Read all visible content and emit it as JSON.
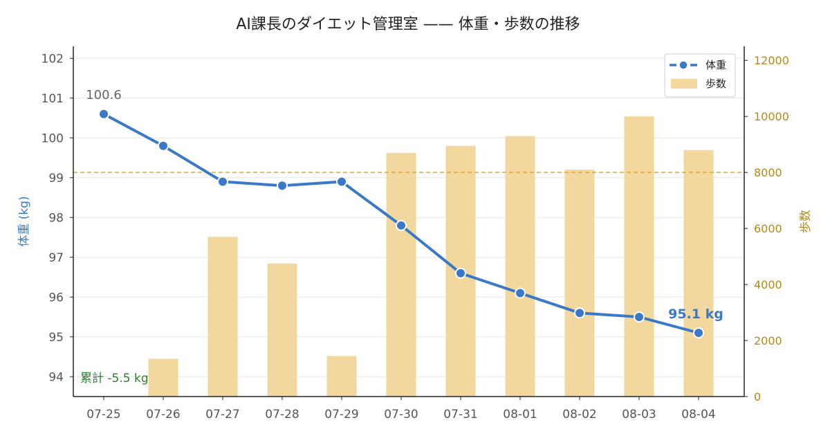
{
  "chart_data": {
    "type": "bar+line",
    "title": "AI課長のダイエット管理室 —— 体重・歩数の推移",
    "categories": [
      "07-25",
      "07-26",
      "07-27",
      "07-28",
      "07-29",
      "07-30",
      "07-31",
      "08-01",
      "08-02",
      "08-03",
      "08-04"
    ],
    "series": [
      {
        "name": "体重",
        "type": "line",
        "axis": "left",
        "color": "#3a78c8",
        "values": [
          100.6,
          99.8,
          98.9,
          98.8,
          98.9,
          97.8,
          96.6,
          96.1,
          95.6,
          95.5,
          95.1
        ]
      },
      {
        "name": "歩数",
        "type": "bar",
        "axis": "right",
        "color": "#f2d89e",
        "values": [
          0,
          1350,
          5700,
          4750,
          1450,
          8700,
          8950,
          9300,
          8100,
          10000,
          8800
        ]
      }
    ],
    "ylabel_left": "体重 (kg)",
    "ylabel_right": "歩数",
    "ylim_left": [
      93.5,
      102.3
    ],
    "ylim_right": [
      0,
      12500
    ],
    "yticks_left": [
      94,
      95,
      96,
      97,
      98,
      99,
      100,
      101,
      102
    ],
    "yticks_right": [
      0,
      2000,
      4000,
      6000,
      8000,
      10000,
      12000
    ],
    "target_steps": 8000,
    "target_line_color": "#e0a52a",
    "annotations": {
      "start_value": "100.6",
      "end_value": "95.1 kg",
      "total_change": "累計 -5.5 kg"
    },
    "legend_position": "top-right",
    "grid": "horizontal"
  }
}
